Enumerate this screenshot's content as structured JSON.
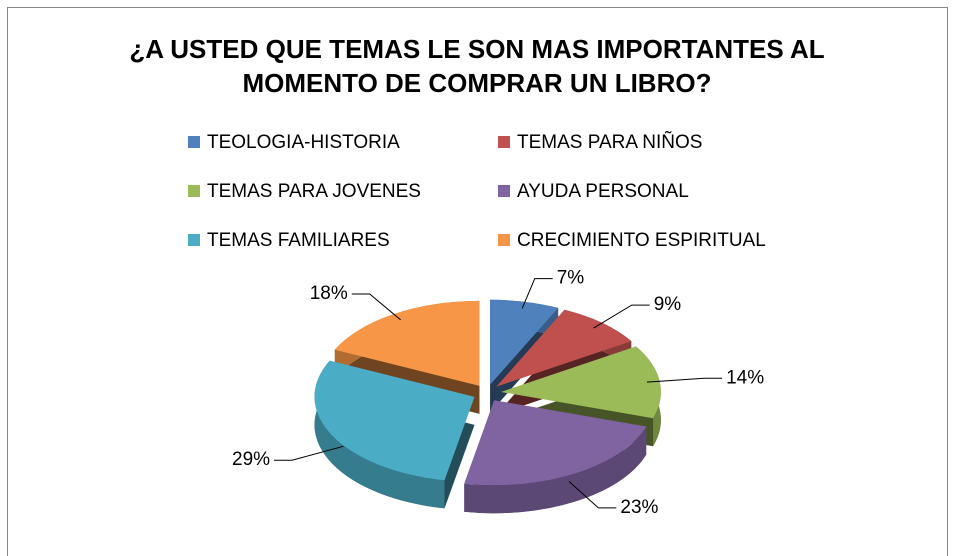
{
  "chart_data": {
    "type": "pie",
    "title": "¿A USTED QUE TEMAS LE SON MAS IMPORTANTES AL MOMENTO DE COMPRAR UN LIBRO?",
    "categories": [
      "TEOLOGIA-HISTORIA",
      "TEMAS PARA NIÑOS",
      "TEMAS PARA JOVENES",
      "AYUDA PERSONAL",
      "TEMAS FAMILIARES",
      "CRECIMIENTO ESPIRITUAL"
    ],
    "values": [
      7,
      9,
      14,
      23,
      29,
      18
    ],
    "value_labels": [
      "7%",
      "9%",
      "14%",
      "23%",
      "29%",
      "18%"
    ],
    "colors": [
      "#4f81bd",
      "#c0504d",
      "#9bbb59",
      "#8064a2",
      "#4bacc6",
      "#f79646"
    ],
    "legend": "top"
  }
}
